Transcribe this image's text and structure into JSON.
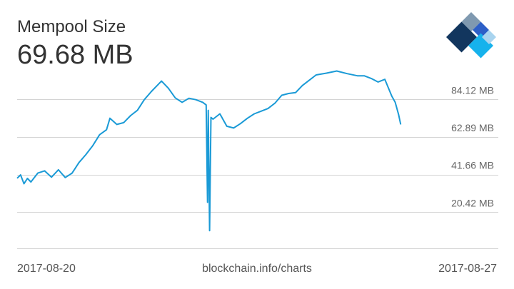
{
  "header": {
    "title": "Mempool Size",
    "current_value": "69.68 MB"
  },
  "footer": {
    "start_date": "2017-08-20",
    "source": "blockchain.info/charts",
    "end_date": "2017-08-27"
  },
  "colors": {
    "line": "#1a9ad6",
    "grid": "#d4d4d4",
    "logo_dark": "#12365e",
    "logo_gray": "#7f99b0",
    "logo_blue": "#2d5fc7",
    "logo_cyan": "#16b2ec",
    "logo_light": "#a9d4ef"
  },
  "chart_data": {
    "type": "line",
    "x_range": [
      "2017-08-20",
      "2017-08-27"
    ],
    "ylim": [
      0,
      100
    ],
    "ylabel_unit": "MB",
    "y_ticks": [
      "20.42 MB",
      "41.66 MB",
      "62.89 MB",
      "84.12 MB"
    ],
    "y_tick_values": [
      20.42,
      41.66,
      62.89,
      84.12
    ],
    "series": [
      {
        "values": [
          [
            0.0,
            39.6
          ],
          [
            0.05,
            41.5
          ],
          [
            0.1,
            36.5
          ],
          [
            0.15,
            39.5
          ],
          [
            0.2,
            37.5
          ],
          [
            0.3,
            42.5
          ],
          [
            0.4,
            43.8
          ],
          [
            0.5,
            40.2
          ],
          [
            0.6,
            44.4
          ],
          [
            0.7,
            40.0
          ],
          [
            0.8,
            42.5
          ],
          [
            0.9,
            48.5
          ],
          [
            1.0,
            53.0
          ],
          [
            1.1,
            58.0
          ],
          [
            1.2,
            64.2
          ],
          [
            1.3,
            67.0
          ],
          [
            1.35,
            73.5
          ],
          [
            1.45,
            70.0
          ],
          [
            1.55,
            71.0
          ],
          [
            1.65,
            75.0
          ],
          [
            1.75,
            78.0
          ],
          [
            1.85,
            84.0
          ],
          [
            1.95,
            88.5
          ],
          [
            2.05,
            92.5
          ],
          [
            2.1,
            94.5
          ],
          [
            2.2,
            90.5
          ],
          [
            2.3,
            85.0
          ],
          [
            2.4,
            82.5
          ],
          [
            2.5,
            84.8
          ],
          [
            2.6,
            84.0
          ],
          [
            2.7,
            82.5
          ],
          [
            2.75,
            81.0
          ],
          [
            2.77,
            26.0
          ],
          [
            2.78,
            78.0
          ],
          [
            2.8,
            10.0
          ],
          [
            2.82,
            74.0
          ],
          [
            2.85,
            73.0
          ],
          [
            2.95,
            76.0
          ],
          [
            3.05,
            69.0
          ],
          [
            3.15,
            68.0
          ],
          [
            3.25,
            70.5
          ],
          [
            3.35,
            73.5
          ],
          [
            3.45,
            76.0
          ],
          [
            3.55,
            77.5
          ],
          [
            3.65,
            79.0
          ],
          [
            3.75,
            82.0
          ],
          [
            3.85,
            86.5
          ],
          [
            3.95,
            87.5
          ],
          [
            4.05,
            88.0
          ],
          [
            4.15,
            92.0
          ],
          [
            4.25,
            95.0
          ],
          [
            4.35,
            98.0
          ],
          [
            4.5,
            99.0
          ],
          [
            4.65,
            100.2
          ],
          [
            4.8,
            98.7
          ],
          [
            4.95,
            97.5
          ],
          [
            5.05,
            97.5
          ],
          [
            5.15,
            96.0
          ],
          [
            5.25,
            94.0
          ],
          [
            5.35,
            95.5
          ],
          [
            5.45,
            86.0
          ],
          [
            5.5,
            82.5
          ],
          [
            5.55,
            75.5
          ],
          [
            5.58,
            70.0
          ]
        ]
      }
    ]
  }
}
